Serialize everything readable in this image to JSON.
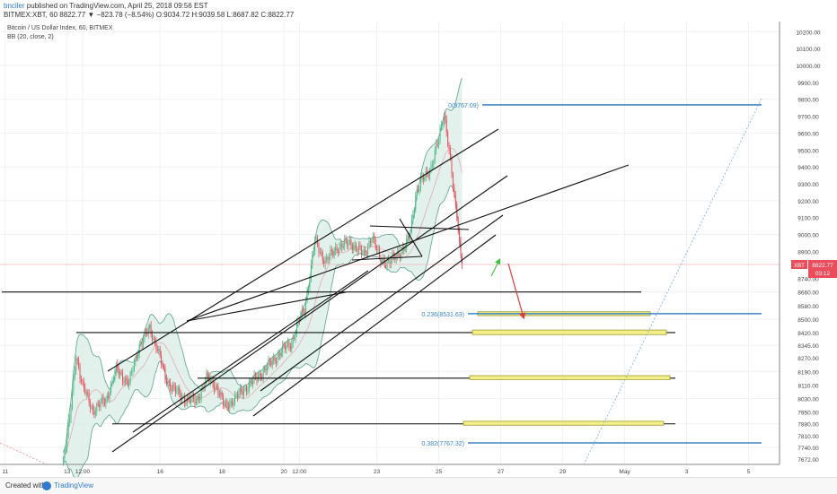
{
  "header": {
    "user": "bnciler",
    "published": " published on TradingView.com, April 25, 2018 09:56 EST",
    "ohlc_line": "BITMEX:XBT, 60  8822.77 ▼ −823.78 (−8.54%) O:9034.72 H:9039.58 L:8687.82 C:8822.77"
  },
  "legend": {
    "title": "Bitcoin / US Dollar Index, 60, BITMEX",
    "indicator": "BB (20, close, 2)"
  },
  "footer": {
    "created_with": "Created with",
    "brand": "TradingView"
  },
  "colors": {
    "up": "#53b987",
    "down": "#eb4d5c",
    "bb_fill": "#d8ece6",
    "bb_line": "#5aa38c",
    "fib": "#3d85c6",
    "zone_fill": "#f5ef8a",
    "zone_stroke": "#9c9a2a",
    "pricetag": "#eb4d5c"
  },
  "chart_data": {
    "type": "candlestick",
    "symbol": "BITMEX:XBT",
    "timeframe": "60",
    "last_price": 8822.77,
    "price_tag": {
      "symbol": "XBT",
      "value": "8822.77",
      "countdown": "03:12"
    },
    "y_ticks": [
      10200,
      10100,
      10000,
      9900,
      9800,
      9700,
      9600,
      9500,
      9400,
      9300,
      9200,
      9100,
      9000,
      8900,
      8822.77,
      8740,
      8660,
      8580,
      8500,
      8420,
      8345,
      8270,
      8190,
      8110,
      8030,
      7950,
      7880,
      7810,
      7740,
      7672
    ],
    "y_tick_labels": [
      "10200.00",
      "10100.00",
      "10000.00",
      "9900.00",
      "9800.00",
      "9700.00",
      "9600.00",
      "9500.00",
      "9400.00",
      "9300.00",
      "9200.00",
      "9100.00",
      "9000.00",
      "8900.00",
      "8822.77",
      "8740.00",
      "8660.00",
      "8580.00",
      "8500.00",
      "8420.00",
      "8345.00",
      "8270.00",
      "8190.00",
      "8110.00",
      "8030.00",
      "7950.00",
      "7880.00",
      "7810.00",
      "7740.00",
      "7672.00"
    ],
    "x_ticks": [
      {
        "label": "11",
        "t": 0
      },
      {
        "label": "13",
        "t": 48
      },
      {
        "label": "12:00",
        "t": 60
      },
      {
        "label": "16",
        "t": 120
      },
      {
        "label": "18",
        "t": 168
      },
      {
        "label": "20",
        "t": 216
      },
      {
        "label": "12:00",
        "t": 228
      },
      {
        "label": "23",
        "t": 288
      },
      {
        "label": "25",
        "t": 336
      },
      {
        "label": "27",
        "t": 384
      },
      {
        "label": "29",
        "t": 432
      },
      {
        "label": "May",
        "t": 480
      },
      {
        "label": "3",
        "t": 528
      },
      {
        "label": "5",
        "t": 576
      }
    ],
    "time_range": [
      -4,
      600
    ],
    "price_range": [
      7640,
      10260
    ],
    "price_anchors": [
      [
        7880,
        7880
      ],
      [
        8420,
        8420
      ],
      [
        9767,
        9767
      ]
    ],
    "keyframes": [
      [
        45,
        7670
      ],
      [
        50,
        7900
      ],
      [
        55,
        8290
      ],
      [
        60,
        8100
      ],
      [
        68,
        7960
      ],
      [
        78,
        8020
      ],
      [
        86,
        8200
      ],
      [
        96,
        8120
      ],
      [
        104,
        8350
      ],
      [
        112,
        8440
      ],
      [
        118,
        8330
      ],
      [
        124,
        8150
      ],
      [
        136,
        8040
      ],
      [
        148,
        8010
      ],
      [
        156,
        8150
      ],
      [
        164,
        8100
      ],
      [
        170,
        7980
      ],
      [
        178,
        8030
      ],
      [
        186,
        8090
      ],
      [
        196,
        8160
      ],
      [
        206,
        8240
      ],
      [
        214,
        8310
      ],
      [
        222,
        8360
      ],
      [
        228,
        8500
      ],
      [
        232,
        8560
      ],
      [
        240,
        8960
      ],
      [
        248,
        8840
      ],
      [
        258,
        8930
      ],
      [
        268,
        8950
      ],
      [
        278,
        8880
      ],
      [
        284,
        8990
      ],
      [
        290,
        8860
      ],
      [
        298,
        8830
      ],
      [
        304,
        8890
      ],
      [
        310,
        8920
      ],
      [
        314,
        9020
      ],
      [
        318,
        9240
      ],
      [
        324,
        9330
      ],
      [
        330,
        9400
      ],
      [
        336,
        9560
      ],
      [
        340,
        9720
      ],
      [
        342,
        9620
      ],
      [
        346,
        9360
      ],
      [
        348,
        9200
      ],
      [
        350,
        9120
      ],
      [
        352,
        8950
      ],
      [
        354,
        8822.77
      ]
    ],
    "fib_levels": [
      {
        "label": "0(9767.09)",
        "value": 9767.09
      },
      {
        "label": "0.236(8531.63)",
        "value": 8531.63
      },
      {
        "label": "0.382(7767.32)",
        "value": 7767.32
      }
    ],
    "support_lines": [
      8660,
      8420,
      8150,
      7880
    ],
    "zones": [
      [
        8520,
        8543
      ],
      [
        8408,
        8435
      ],
      [
        8142,
        8165
      ],
      [
        7872,
        7895
      ]
    ]
  }
}
